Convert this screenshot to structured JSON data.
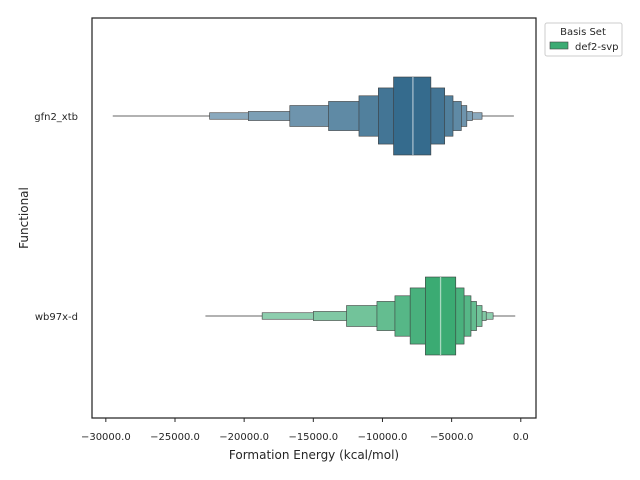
{
  "chart_data": {
    "type": "boxen",
    "orientation": "horizontal",
    "xlabel": "Formation Energy (kcal/mol)",
    "ylabel": "Functional",
    "xlim": [
      -31000,
      1100
    ],
    "xticks": [
      -30000,
      -25000,
      -20000,
      -15000,
      -10000,
      -5000,
      0
    ],
    "xtick_labels": [
      "−30000.0",
      "−25000.0",
      "−20000.0",
      "−15000.0",
      "−10000.0",
      "−5000.0",
      "0.0"
    ],
    "categories": [
      "gfn2_xtb",
      "wb97x-d"
    ],
    "grid": false,
    "legend": {
      "title": "Basis Set",
      "placement": "upper-right-outside",
      "entries": [
        {
          "name": "def2-svp",
          "color": "#3bab73"
        }
      ]
    },
    "groups": [
      {
        "category": "gfn2_xtb",
        "color": "#356b8d",
        "median": -7800,
        "boxes": [
          {
            "lo": -9200,
            "hi": -6500
          },
          {
            "lo": -10300,
            "hi": -5500
          },
          {
            "lo": -11700,
            "hi": -4900
          },
          {
            "lo": -13900,
            "hi": -4300
          },
          {
            "lo": -16700,
            "hi": -3900
          },
          {
            "lo": -19700,
            "hi": -3500
          },
          {
            "lo": -22500,
            "hi": -2800
          }
        ],
        "whisker": [
          -29500,
          -500
        ]
      },
      {
        "category": "wb97x-d",
        "color": "#3bab73",
        "median": -5800,
        "boxes": [
          {
            "lo": -6900,
            "hi": -4700
          },
          {
            "lo": -8000,
            "hi": -4100
          },
          {
            "lo": -9100,
            "hi": -3600
          },
          {
            "lo": -10400,
            "hi": -3200
          },
          {
            "lo": -12600,
            "hi": -2800
          },
          {
            "lo": -15000,
            "hi": -2500
          },
          {
            "lo": -18700,
            "hi": -2000
          }
        ],
        "whisker": [
          -22800,
          -400
        ]
      }
    ]
  }
}
